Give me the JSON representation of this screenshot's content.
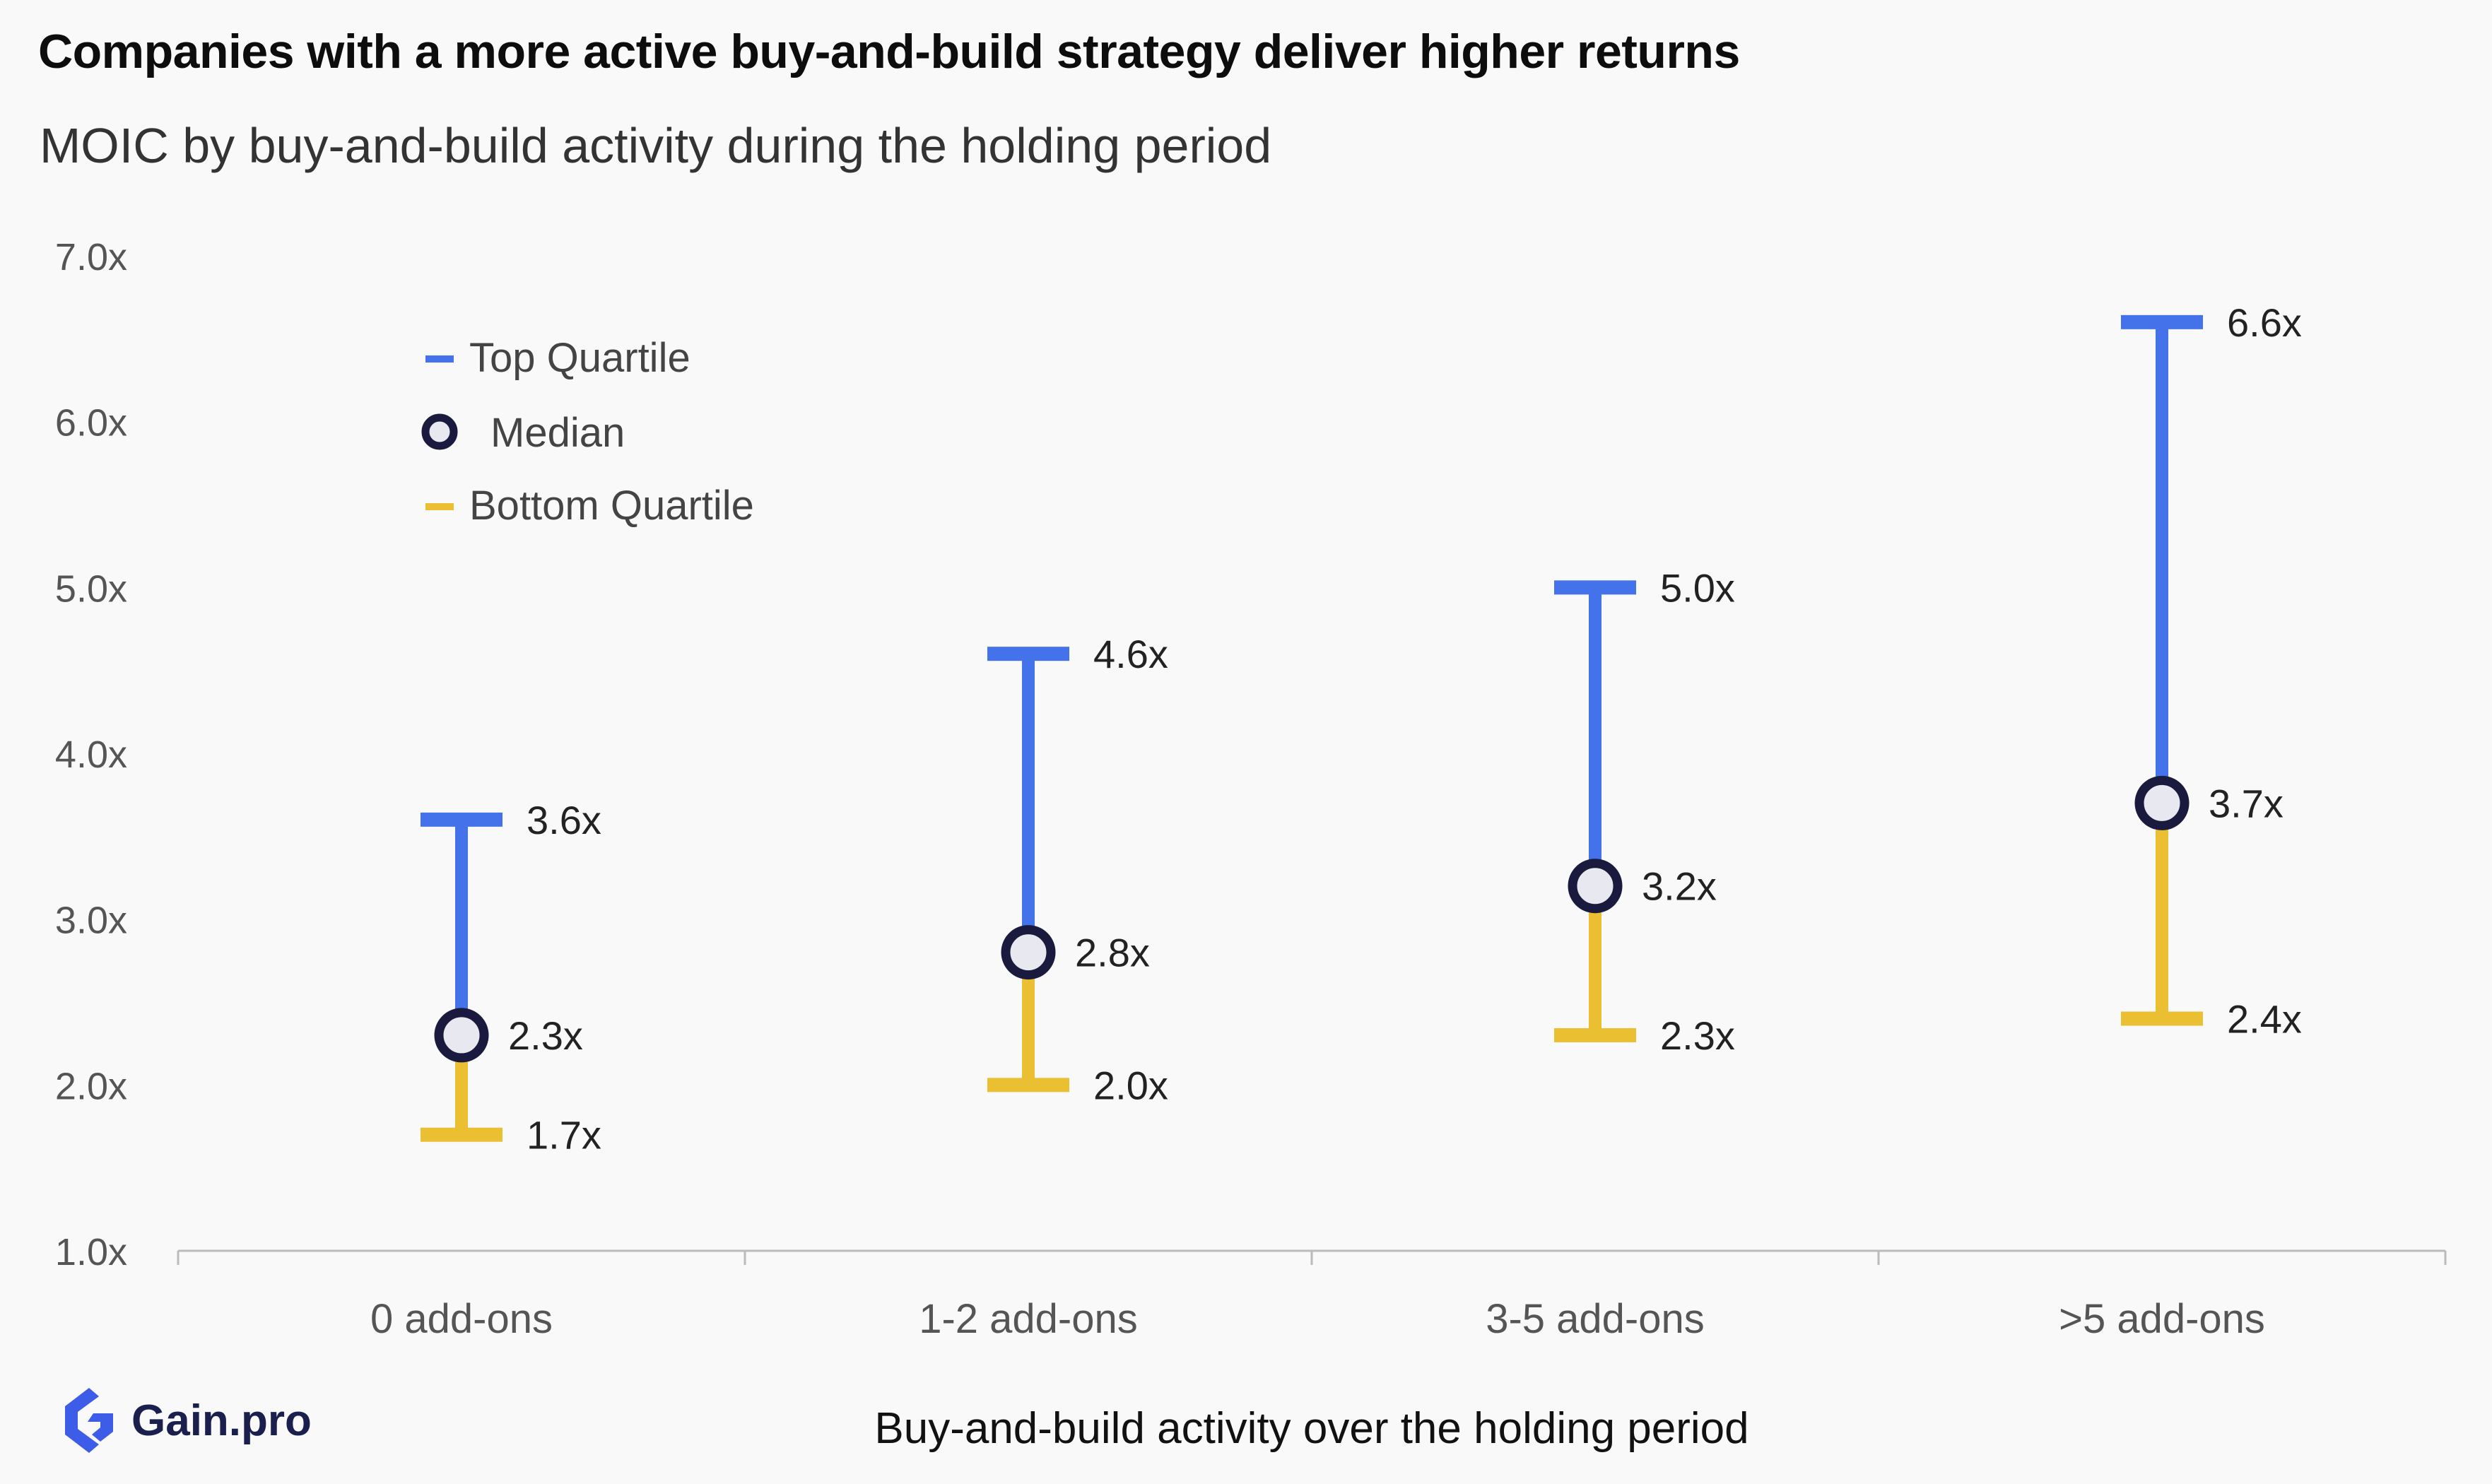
{
  "title": "Companies with a more active buy-and-build strategy deliver higher returns",
  "subtitle": "MOIC by buy-and-build activity during the holding period",
  "brand": {
    "name": "Gain.pro",
    "icon": "gain-pro-logo-icon"
  },
  "colors": {
    "top_quartile": "#4472ea",
    "bottom_quartile": "#ebbf32",
    "median_stroke": "#1a1a3e",
    "median_fill": "#e8e9f0",
    "axis_text": "#555555",
    "label_text": "#222222"
  },
  "chart_data": {
    "type": "range",
    "categories": [
      "0 add-ons",
      "1-2 add-ons",
      "3-5 add-ons",
      ">5 add-ons"
    ],
    "series": [
      {
        "name": "Top Quartile",
        "values": [
          3.6,
          4.6,
          5.0,
          6.6
        ],
        "labels": [
          "3.6x",
          "4.6x",
          "5.0x",
          "6.6x"
        ]
      },
      {
        "name": "Median",
        "values": [
          2.3,
          2.8,
          3.2,
          3.7
        ],
        "labels": [
          "2.3x",
          "2.8x",
          "3.2x",
          "3.7x"
        ]
      },
      {
        "name": "Bottom Quartile",
        "values": [
          1.7,
          2.0,
          2.3,
          2.4
        ],
        "labels": [
          "1.7x",
          "2.0x",
          "2.3x",
          "2.4x"
        ]
      }
    ],
    "yticks": [
      1,
      2,
      3,
      4,
      5,
      6,
      7
    ],
    "ytick_labels": [
      "1.0x",
      "2.0x",
      "3.0x",
      "4.0x",
      "5.0x",
      "6.0x",
      "7.0x"
    ],
    "ylim": [
      1,
      7
    ],
    "xlabel": "Buy-and-build activity over the holding period",
    "ylabel": "",
    "legend_position": "top-left",
    "grid": false
  }
}
